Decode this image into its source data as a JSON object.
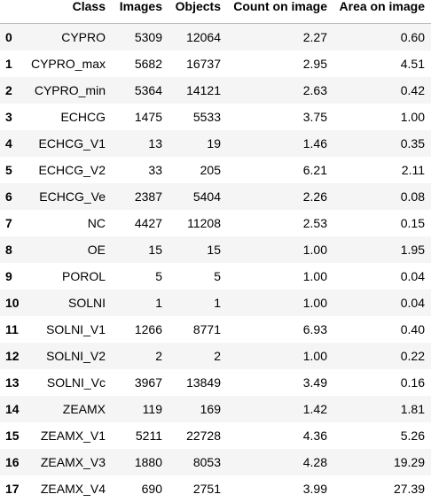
{
  "table": {
    "columns": [
      "",
      "Class",
      "Images",
      "Objects",
      "Count on image",
      "Area on image"
    ],
    "rows": [
      {
        "index": "0",
        "class": "CYPRO",
        "images": "5309",
        "objects": "12064",
        "count": "2.27",
        "area": "0.60"
      },
      {
        "index": "1",
        "class": "CYPRO_max",
        "images": "5682",
        "objects": "16737",
        "count": "2.95",
        "area": "4.51"
      },
      {
        "index": "2",
        "class": "CYPRO_min",
        "images": "5364",
        "objects": "14121",
        "count": "2.63",
        "area": "0.42"
      },
      {
        "index": "3",
        "class": "ECHCG",
        "images": "1475",
        "objects": "5533",
        "count": "3.75",
        "area": "1.00"
      },
      {
        "index": "4",
        "class": "ECHCG_V1",
        "images": "13",
        "objects": "19",
        "count": "1.46",
        "area": "0.35"
      },
      {
        "index": "5",
        "class": "ECHCG_V2",
        "images": "33",
        "objects": "205",
        "count": "6.21",
        "area": "2.11"
      },
      {
        "index": "6",
        "class": "ECHCG_Ve",
        "images": "2387",
        "objects": "5404",
        "count": "2.26",
        "area": "0.08"
      },
      {
        "index": "7",
        "class": "NC",
        "images": "4427",
        "objects": "11208",
        "count": "2.53",
        "area": "0.15"
      },
      {
        "index": "8",
        "class": "OE",
        "images": "15",
        "objects": "15",
        "count": "1.00",
        "area": "1.95"
      },
      {
        "index": "9",
        "class": "POROL",
        "images": "5",
        "objects": "5",
        "count": "1.00",
        "area": "0.04"
      },
      {
        "index": "10",
        "class": "SOLNI",
        "images": "1",
        "objects": "1",
        "count": "1.00",
        "area": "0.04"
      },
      {
        "index": "11",
        "class": "SOLNI_V1",
        "images": "1266",
        "objects": "8771",
        "count": "6.93",
        "area": "0.40"
      },
      {
        "index": "12",
        "class": "SOLNI_V2",
        "images": "2",
        "objects": "2",
        "count": "1.00",
        "area": "0.22"
      },
      {
        "index": "13",
        "class": "SOLNI_Vc",
        "images": "3967",
        "objects": "13849",
        "count": "3.49",
        "area": "0.16"
      },
      {
        "index": "14",
        "class": "ZEAMX",
        "images": "119",
        "objects": "169",
        "count": "1.42",
        "area": "1.81"
      },
      {
        "index": "15",
        "class": "ZEAMX_V1",
        "images": "5211",
        "objects": "22728",
        "count": "4.36",
        "area": "5.26"
      },
      {
        "index": "16",
        "class": "ZEAMX_V3",
        "images": "1880",
        "objects": "8053",
        "count": "4.28",
        "area": "19.29"
      },
      {
        "index": "17",
        "class": "ZEAMX_V4",
        "images": "690",
        "objects": "2751",
        "count": "3.99",
        "area": "27.39"
      }
    ]
  },
  "colors": {
    "stripe": "#f5f5f5",
    "header_border": "#bdbdbd"
  }
}
